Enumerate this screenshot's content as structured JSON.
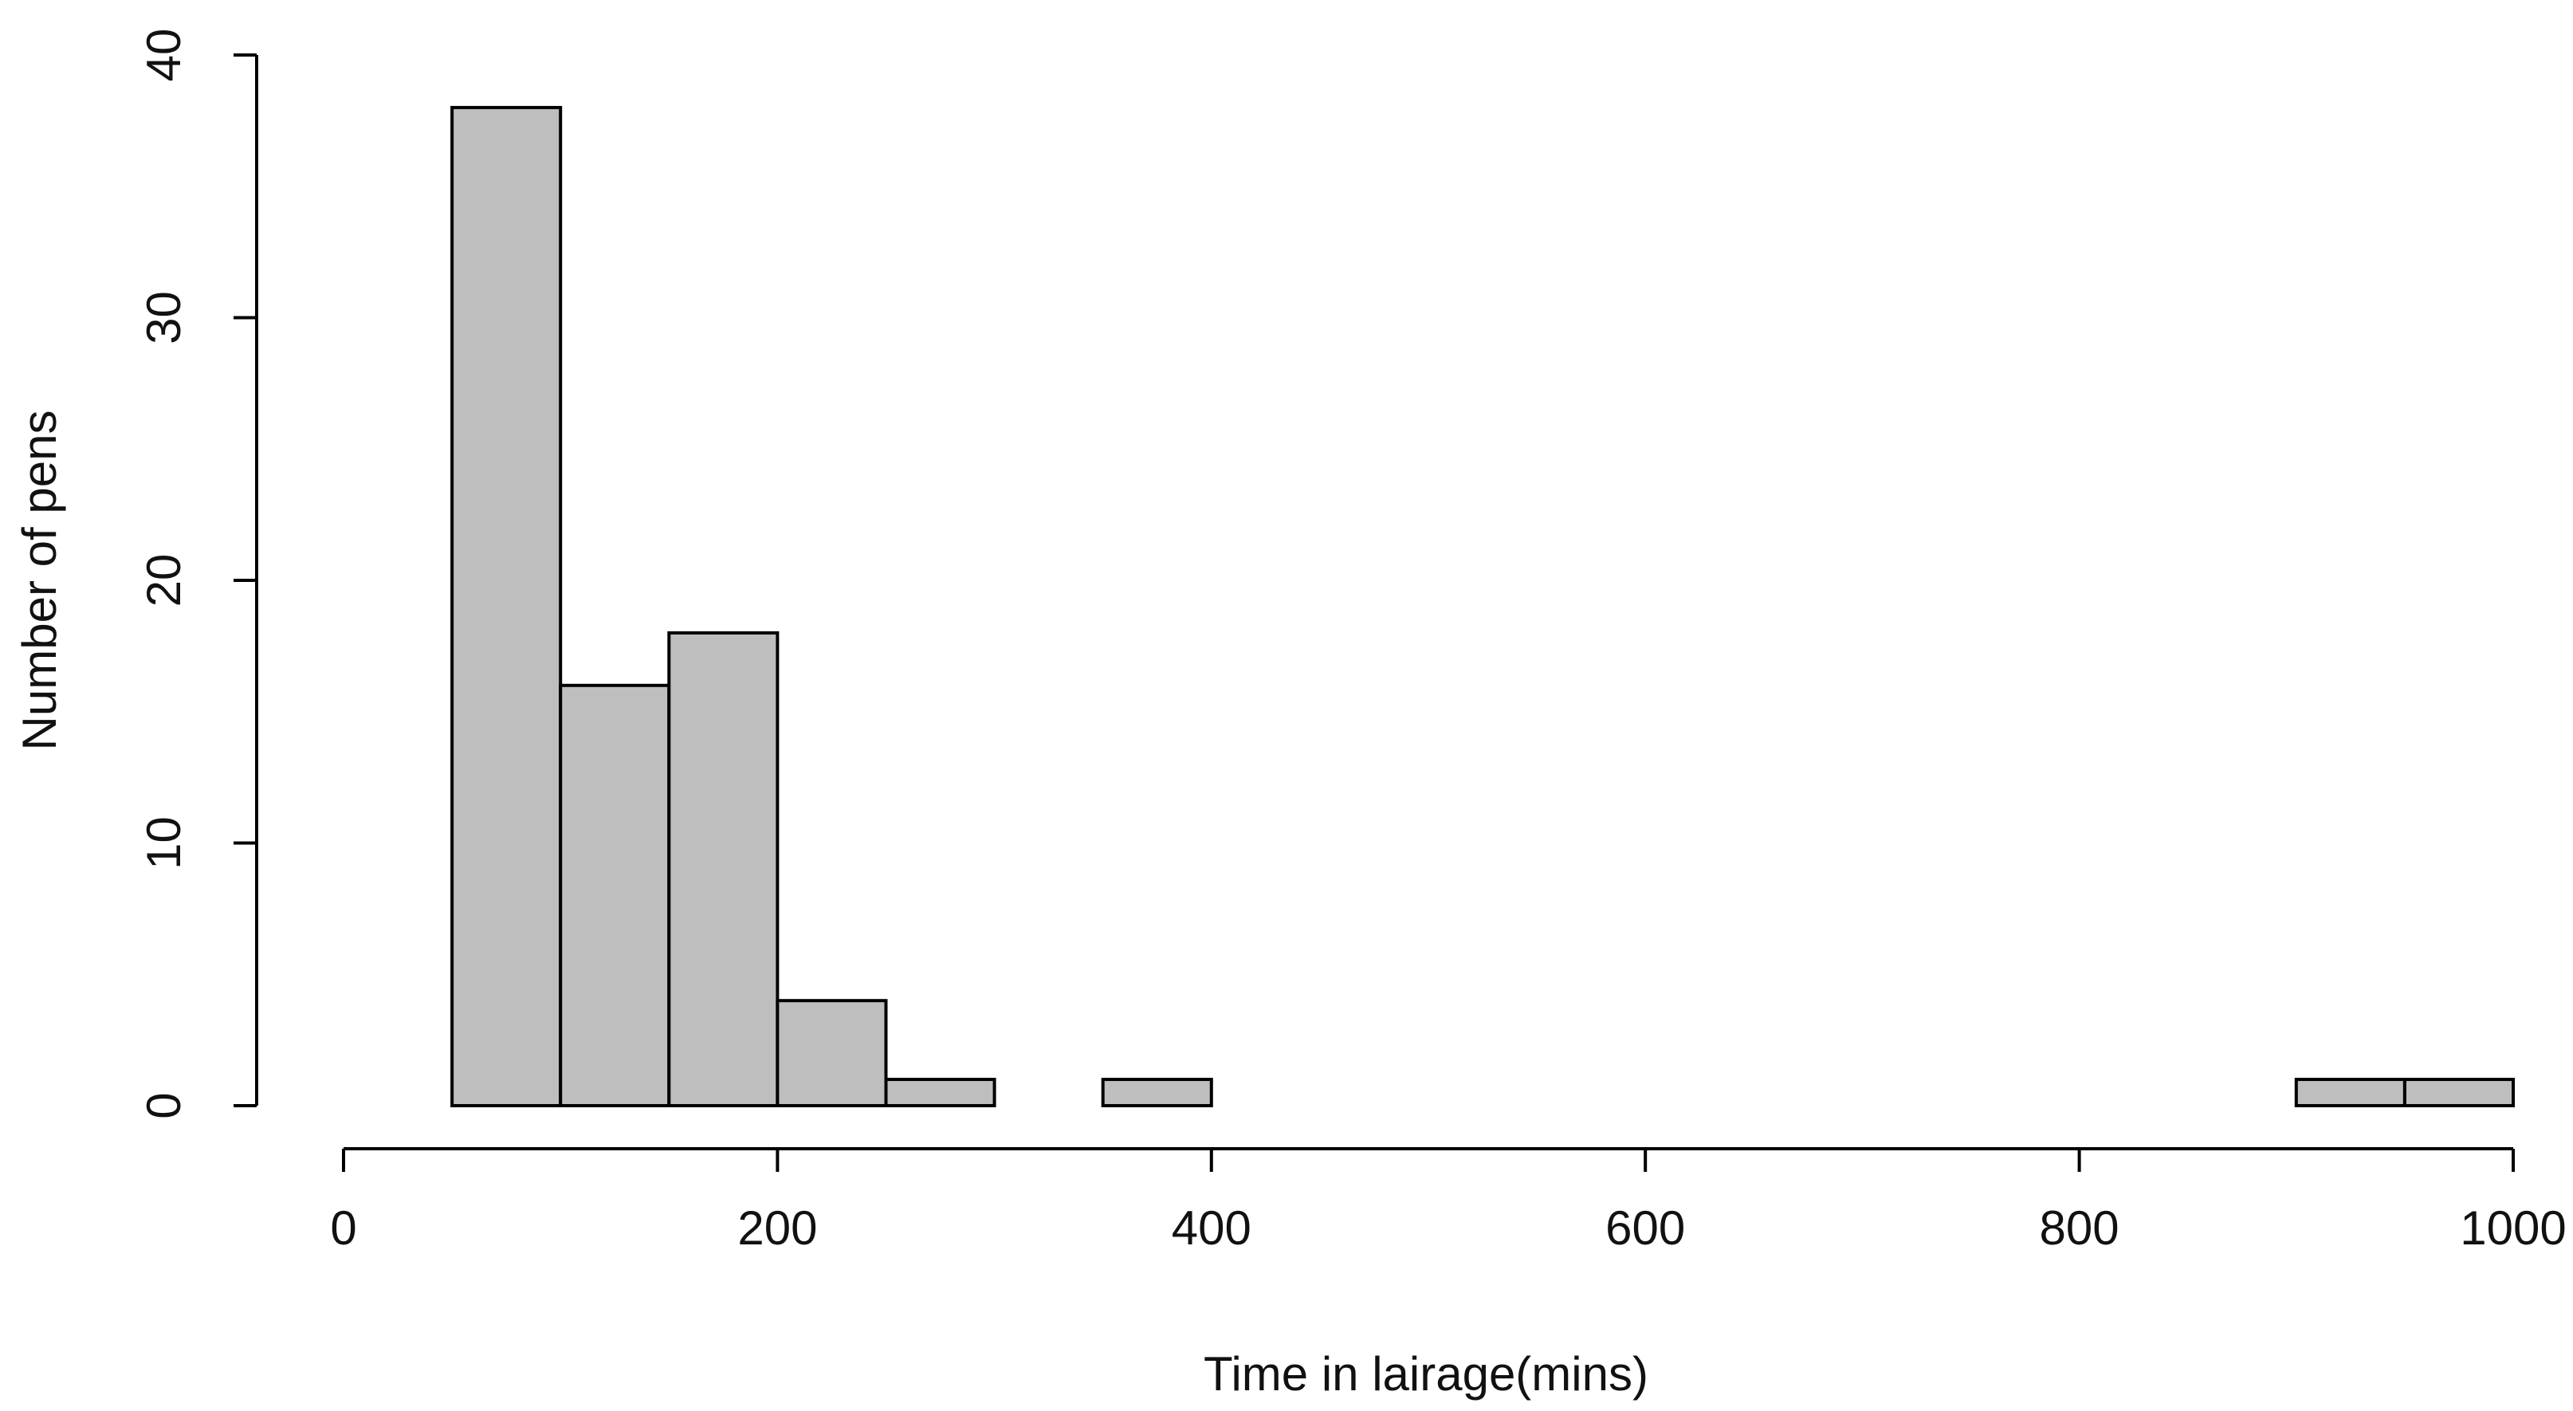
{
  "chart_data": {
    "type": "histogram",
    "xlabel": "Time in lairage(mins)",
    "ylabel": "Number of pens",
    "bins": [
      50,
      100,
      150,
      200,
      250,
      300,
      350,
      400,
      450,
      500,
      550,
      600,
      650,
      700,
      750,
      800,
      850,
      900,
      950,
      1000
    ],
    "values": [
      38,
      16,
      18,
      4,
      1,
      0,
      1,
      0,
      0,
      0,
      0,
      0,
      0,
      0,
      0,
      0,
      0,
      1,
      1
    ],
    "color": "#bebebe",
    "xlim": [
      0,
      1000
    ],
    "xticks": [
      0,
      200,
      400,
      600,
      800,
      1000
    ],
    "ylim": [
      0,
      40
    ],
    "yticks": [
      0,
      10,
      20,
      30,
      40
    ]
  }
}
